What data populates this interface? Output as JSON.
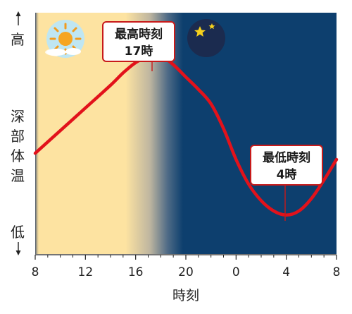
{
  "chart_data": {
    "type": "line",
    "xlabel": "時刻",
    "ylabel": "深部体温",
    "y_high_label": "高",
    "y_low_label": "低",
    "x_ticks": [
      "8",
      "12",
      "16",
      "20",
      "0",
      "4",
      "8"
    ],
    "x_hours": [
      8,
      12,
      16,
      20,
      24,
      28,
      32
    ],
    "series": [
      {
        "color": "#e2121b",
        "x": [
          8,
          10,
          12,
          14,
          15,
          16,
          17,
          17.5,
          18,
          19,
          20,
          21,
          22,
          23,
          24,
          25,
          26,
          27,
          28,
          29,
          30,
          31,
          32
        ],
        "y": [
          0.4,
          0.51,
          0.62,
          0.73,
          0.79,
          0.84,
          0.87,
          0.88,
          0.875,
          0.83,
          0.77,
          0.71,
          0.64,
          0.52,
          0.37,
          0.25,
          0.17,
          0.12,
          0.1,
          0.12,
          0.18,
          0.27,
          0.37
        ]
      }
    ],
    "day_label": "day",
    "night_label": "night",
    "annotations": [
      {
        "title": "最高時刻",
        "value": "17時",
        "x": 17.5,
        "y": 0.88
      },
      {
        "title": "最低時刻",
        "value": "4時",
        "x": 28,
        "y": 0.1
      }
    ],
    "colors": {
      "day": "#fde3a1",
      "night": "#0d3f6e",
      "line": "#e2121b"
    },
    "icons": {
      "day": "sun-icon",
      "night": "moon-stars-icon"
    }
  }
}
